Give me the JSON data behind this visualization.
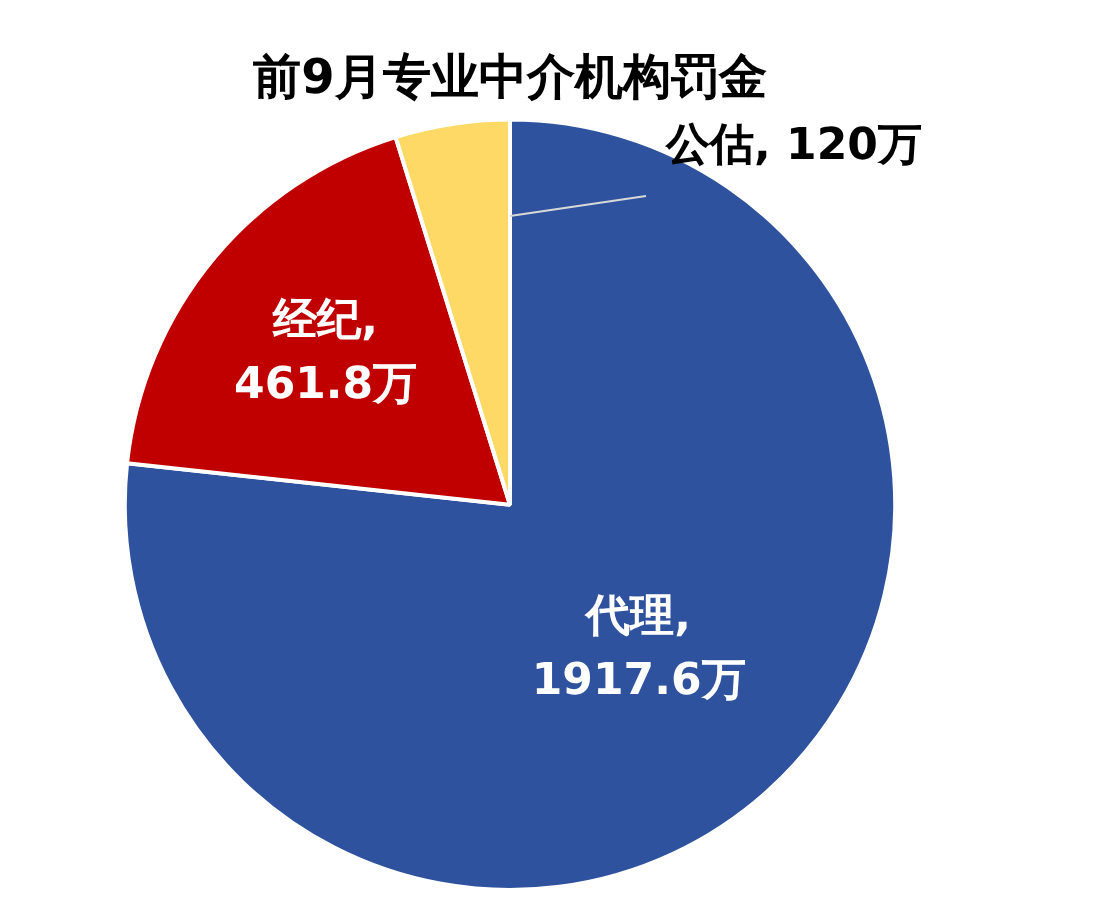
{
  "chart_data": {
    "type": "pie",
    "title": "前9月专业中介机构罚金",
    "categories": [
      "代理",
      "经纪",
      "公估"
    ],
    "values": [
      1917.6,
      461.8,
      120
    ],
    "colors": [
      "#2f529e",
      "#c00000",
      "#ffd966"
    ],
    "value_labels": [
      ", 1917.6万",
      ", 461.8万",
      ", 120万"
    ],
    "legend": false
  }
}
